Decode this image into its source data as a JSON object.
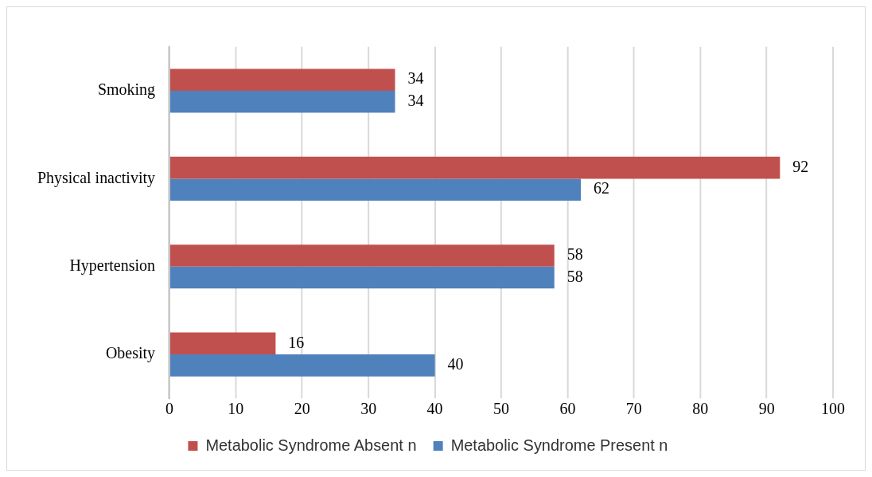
{
  "chart_data": {
    "type": "bar",
    "orientation": "horizontal",
    "categories": [
      "Smoking",
      "Physical inactivity",
      "Hypertension",
      "Obesity"
    ],
    "series": [
      {
        "name": "Metabolic Syndrome Absent n",
        "color": "#c0504d",
        "values": [
          34,
          92,
          58,
          16
        ]
      },
      {
        "name": "Metabolic Syndrome Present n",
        "color": "#4f81bd",
        "values": [
          34,
          62,
          58,
          40
        ]
      }
    ],
    "xlim": [
      0,
      100
    ],
    "xticks": [
      0,
      10,
      20,
      30,
      40,
      50,
      60,
      70,
      80,
      90,
      100
    ],
    "grid": "x",
    "legend": "bottom",
    "data_labels": true
  }
}
